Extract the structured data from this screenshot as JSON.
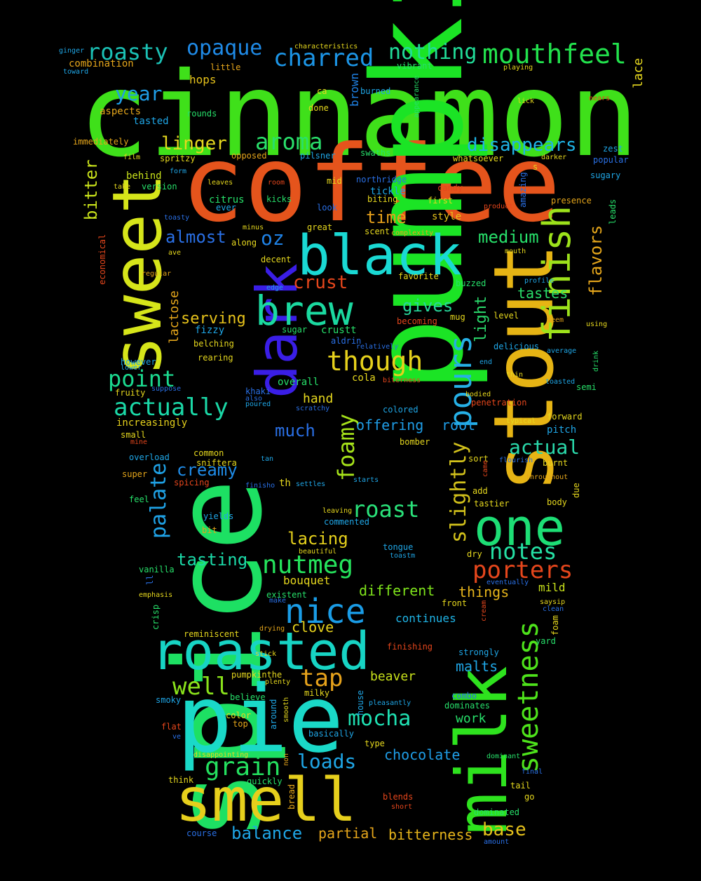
{
  "words": [
    {
      "text": "cinnamon",
      "color": "#3fe01a"
    },
    {
      "text": "coffee",
      "color": "#e5541c"
    },
    {
      "text": "pumpkin",
      "color": "#1be425"
    },
    {
      "text": "spice",
      "color": "#1de063"
    },
    {
      "text": "stout",
      "color": "#e6b414"
    },
    {
      "text": "sweet",
      "color": "#d6e51a"
    },
    {
      "text": "dark",
      "color": "#3a1ee6"
    },
    {
      "text": "pie",
      "color": "#1ad9c8"
    },
    {
      "text": "milk",
      "color": "#2ee21e"
    },
    {
      "text": "smell",
      "color": "#e6cf1c"
    },
    {
      "text": "black",
      "color": "#1ad9d4"
    },
    {
      "text": "roasted",
      "color": "#17d4c4"
    },
    {
      "text": "brew",
      "color": "#1bd9a0"
    },
    {
      "text": "finish",
      "color": "#9de21b"
    },
    {
      "text": "one",
      "color": "#1dde75"
    },
    {
      "text": "pours",
      "color": "#26b0e6"
    },
    {
      "text": "sweetness",
      "color": "#4ee31b"
    },
    {
      "text": "foamy",
      "color": "#a6e31a"
    },
    {
      "text": "slightly",
      "color": "#d2c11b"
    },
    {
      "text": "mouthfeel",
      "color": "#22e24d"
    },
    {
      "text": "charred",
      "color": "#1c95e6"
    },
    {
      "text": "roasty",
      "color": "#1bc1b5"
    },
    {
      "text": "opaque",
      "color": "#1f8ae6"
    },
    {
      "text": "nothing",
      "color": "#21dc98"
    },
    {
      "text": "though",
      "color": "#e6d11c"
    },
    {
      "text": "nutmeg",
      "color": "#25e35c"
    },
    {
      "text": "nice",
      "color": "#1a9ce6"
    },
    {
      "text": "actually",
      "color": "#1bd9a8"
    },
    {
      "text": "palate",
      "color": "#1fa2e6"
    },
    {
      "text": "aroma",
      "color": "#2adf6b"
    },
    {
      "text": "point",
      "color": "#1bd98f"
    },
    {
      "text": "year",
      "color": "#1f9de6"
    },
    {
      "text": "disappears",
      "color": "#1fb4e6"
    },
    {
      "text": "linger",
      "color": "#e6d81e"
    },
    {
      "text": "bitter",
      "color": "#c9e21b"
    },
    {
      "text": "almost",
      "color": "#2a70e6"
    },
    {
      "text": "oz",
      "color": "#1f82e6"
    },
    {
      "text": "crust",
      "color": "#e5461c"
    },
    {
      "text": "medium",
      "color": "#27e06a"
    },
    {
      "text": "time",
      "color": "#e6a01b"
    },
    {
      "text": "gives",
      "color": "#27d99c"
    },
    {
      "text": "flavors",
      "color": "#e5a61b"
    },
    {
      "text": "grain",
      "color": "#24e05f"
    },
    {
      "text": "mocha",
      "color": "#1fe0b2"
    },
    {
      "text": "tap",
      "color": "#e6a21b"
    },
    {
      "text": "well",
      "color": "#8ae21b"
    },
    {
      "text": "notes",
      "color": "#25e0a4"
    },
    {
      "text": "porters",
      "color": "#e5461c"
    },
    {
      "text": "roast",
      "color": "#2ae27a"
    },
    {
      "text": "creamy",
      "color": "#1f8be6"
    },
    {
      "text": "actual",
      "color": "#2ad9ab"
    },
    {
      "text": "tasting",
      "color": "#1bd9a8"
    },
    {
      "text": "lacing",
      "color": "#e6d11c"
    },
    {
      "text": "loads",
      "color": "#1fa6e6"
    },
    {
      "text": "balance",
      "color": "#1fa6e6"
    },
    {
      "text": "partial",
      "color": "#e6a61b"
    },
    {
      "text": "bitterness",
      "color": "#e6b41b"
    },
    {
      "text": "base",
      "color": "#e6c21b"
    },
    {
      "text": "chocolate",
      "color": "#1f9de6"
    },
    {
      "text": "much",
      "color": "#2a70e6"
    },
    {
      "text": "light",
      "color": "#2ad96b"
    },
    {
      "text": "lactose",
      "color": "#e5a61b"
    },
    {
      "text": "serving",
      "color": "#e6c21b"
    },
    {
      "text": "tastes",
      "color": "#2adf6b"
    },
    {
      "text": "different",
      "color": "#7ee21b"
    },
    {
      "text": "things",
      "color": "#e6b41b"
    },
    {
      "text": "clove",
      "color": "#e6d11c"
    },
    {
      "text": "hand",
      "color": "#e6d81e"
    },
    {
      "text": "offering",
      "color": "#1f9de6"
    },
    {
      "text": "root",
      "color": "#1f9de6"
    },
    {
      "text": "malts",
      "color": "#1fa6e6"
    },
    {
      "text": "beaver",
      "color": "#c9e21b"
    },
    {
      "text": "work",
      "color": "#27e06a"
    },
    {
      "text": "increasingly",
      "color": "#e6d11c"
    },
    {
      "text": "mild",
      "color": "#c9e21b"
    },
    {
      "text": "continues",
      "color": "#1fb4e6"
    },
    {
      "text": "bouquet",
      "color": "#e6d81e"
    },
    {
      "text": "combination",
      "color": "#e5a61b"
    },
    {
      "text": "hops",
      "color": "#e6c21b"
    },
    {
      "text": "lace",
      "color": "#e6d81e"
    },
    {
      "text": "brown",
      "color": "#1f82e6"
    },
    {
      "text": "aspects",
      "color": "#e5a61b"
    },
    {
      "text": "tasted",
      "color": "#1fa6e6"
    },
    {
      "text": "immediately",
      "color": "#e5a61b"
    },
    {
      "text": "behind",
      "color": "#c9e21b"
    },
    {
      "text": "version",
      "color": "#27e06a"
    },
    {
      "text": "citrus",
      "color": "#27e06a"
    },
    {
      "text": "tickle",
      "color": "#1fa6e6"
    },
    {
      "text": "candy",
      "color": "#e5461c"
    },
    {
      "text": "style",
      "color": "#e6c21b"
    },
    {
      "text": "presence",
      "color": "#e5a61b"
    },
    {
      "text": "biting",
      "color": "#e6d81e"
    },
    {
      "text": "first",
      "color": "#e6d81e"
    },
    {
      "text": "kicks",
      "color": "#27e06a"
    },
    {
      "text": "leads",
      "color": "#27e06a"
    },
    {
      "text": "great",
      "color": "#e6d81e"
    },
    {
      "text": "scent",
      "color": "#e6d81e"
    },
    {
      "text": "decent",
      "color": "#e6d81e"
    },
    {
      "text": "favorite",
      "color": "#e6d81e"
    },
    {
      "text": "buzzed",
      "color": "#27e06a"
    },
    {
      "text": "mug",
      "color": "#e6d81e"
    },
    {
      "text": "level",
      "color": "#e6d81e"
    },
    {
      "text": "fizzy",
      "color": "#1fa6e6"
    },
    {
      "text": "belching",
      "color": "#e6d81e"
    },
    {
      "text": "rearing",
      "color": "#e6d81e"
    },
    {
      "text": "sugar",
      "color": "#27e06a"
    },
    {
      "text": "crustt",
      "color": "#27e06a"
    },
    {
      "text": "aldrin",
      "color": "#2a70e6"
    },
    {
      "text": "delicious",
      "color": "#1fa6e6"
    },
    {
      "text": "thin",
      "color": "#e6d81e"
    },
    {
      "text": "semi",
      "color": "#27e06a"
    },
    {
      "text": "however",
      "color": "#1fa6e6"
    },
    {
      "text": "fruity",
      "color": "#e6d81e"
    },
    {
      "text": "cola",
      "color": "#e6d81e"
    },
    {
      "text": "colored",
      "color": "#1fa6e6"
    },
    {
      "text": "overall",
      "color": "#27e06a"
    },
    {
      "text": "khaki",
      "color": "#2a70e6"
    },
    {
      "text": "forward",
      "color": "#e6d81e"
    },
    {
      "text": "pitch",
      "color": "#1fa6e6"
    },
    {
      "text": "penetration",
      "color": "#e5461c"
    },
    {
      "text": "small",
      "color": "#e6d81e"
    },
    {
      "text": "bomber",
      "color": "#e6d81e"
    },
    {
      "text": "common",
      "color": "#e6d81e"
    },
    {
      "text": "sniftera",
      "color": "#e6d81e"
    },
    {
      "text": "overload",
      "color": "#1fa6e6"
    },
    {
      "text": "super",
      "color": "#e5a61b"
    },
    {
      "text": "spicing",
      "color": "#e5461c"
    },
    {
      "text": "sort",
      "color": "#e6d81e"
    },
    {
      "text": "burnt",
      "color": "#e6d81e"
    },
    {
      "text": "th",
      "color": "#e6d81e"
    },
    {
      "text": "settles",
      "color": "#1fa6e6"
    },
    {
      "text": "starts",
      "color": "#1fa6e6"
    },
    {
      "text": "add",
      "color": "#e6d81e"
    },
    {
      "text": "tastier",
      "color": "#e6d81e"
    },
    {
      "text": "body",
      "color": "#e6d81e"
    },
    {
      "text": "feel",
      "color": "#27e06a"
    },
    {
      "text": "yields",
      "color": "#1fa6e6"
    },
    {
      "text": "bit",
      "color": "#e5a61b"
    },
    {
      "text": "commented",
      "color": "#1fa6e6"
    },
    {
      "text": "tongue",
      "color": "#1fa6e6"
    },
    {
      "text": "dry",
      "color": "#e6d81e"
    },
    {
      "text": "vanilla",
      "color": "#27e06a"
    },
    {
      "text": "existent",
      "color": "#27e06a"
    },
    {
      "text": "front",
      "color": "#e6d81e"
    },
    {
      "text": "crisp",
      "color": "#27e06a"
    },
    {
      "text": "foam",
      "color": "#e6d81e"
    },
    {
      "text": "reminiscent",
      "color": "#e6d81e"
    },
    {
      "text": "finishing",
      "color": "#e5461c"
    },
    {
      "text": "yard",
      "color": "#27e06a"
    },
    {
      "text": "strongly",
      "color": "#1fa6e6"
    },
    {
      "text": "pumpkinthe",
      "color": "#e6d81e"
    },
    {
      "text": "smoky",
      "color": "#1fa6e6"
    },
    {
      "text": "believe",
      "color": "#27e06a"
    },
    {
      "text": "milky",
      "color": "#e6d81e"
    },
    {
      "text": "combo",
      "color": "#2a70e6"
    },
    {
      "text": "dominates",
      "color": "#27e06a"
    },
    {
      "text": "flat",
      "color": "#e5461c"
    },
    {
      "text": "color",
      "color": "#e6d81e"
    },
    {
      "text": "top",
      "color": "#e5a61b"
    },
    {
      "text": "basically",
      "color": "#1fa6e6"
    },
    {
      "text": "type",
      "color": "#e6d81e"
    },
    {
      "text": "think",
      "color": "#e6d81e"
    },
    {
      "text": "quickly",
      "color": "#27e06a"
    },
    {
      "text": "final",
      "color": "#2a70e6"
    },
    {
      "text": "tail",
      "color": "#e6d81e"
    },
    {
      "text": "go",
      "color": "#e6d81e"
    },
    {
      "text": "blends",
      "color": "#e5461c"
    },
    {
      "text": "dominated",
      "color": "#27e06a"
    },
    {
      "text": "course",
      "color": "#2a70e6"
    },
    {
      "text": "around",
      "color": "#1fa6e6"
    },
    {
      "text": "house",
      "color": "#1fa6e6"
    },
    {
      "text": "bread",
      "color": "#e5a61b"
    },
    {
      "text": "ginger",
      "color": "#1fa6e6"
    },
    {
      "text": "toward",
      "color": "#1fa6e6"
    },
    {
      "text": "little",
      "color": "#e5a61b"
    },
    {
      "text": "characteristics",
      "color": "#e6d81e"
    },
    {
      "text": "vibrant",
      "color": "#27e06a"
    },
    {
      "text": "playing",
      "color": "#e6d81e"
    },
    {
      "text": "rounds",
      "color": "#27e06a"
    },
    {
      "text": "ca",
      "color": "#e6d81e"
    },
    {
      "text": "burned",
      "color": "#1fa6e6"
    },
    {
      "text": "appearance",
      "color": "#27e06a"
    },
    {
      "text": "lick",
      "color": "#e6d81e"
    },
    {
      "text": "nears",
      "color": "#e5461c"
    },
    {
      "text": "done",
      "color": "#e6d81e"
    },
    {
      "text": "film",
      "color": "#e6d81e"
    },
    {
      "text": "spritzy",
      "color": "#e6d81e"
    },
    {
      "text": "opposed",
      "color": "#e5a61b"
    },
    {
      "text": "pilsner",
      "color": "#1fa6e6"
    },
    {
      "text": "swaths",
      "color": "#27e06a"
    },
    {
      "text": "whatsoever",
      "color": "#e6d81e"
    },
    {
      "text": "zest",
      "color": "#1fa6e6"
    },
    {
      "text": "darker",
      "color": "#e6d81e"
    },
    {
      "text": "popular",
      "color": "#2a70e6"
    },
    {
      "text": "sugary",
      "color": "#1fa6e6"
    },
    {
      "text": "form",
      "color": "#1fa6e6"
    },
    {
      "text": "take",
      "color": "#e6d81e"
    },
    {
      "text": "leaves",
      "color": "#e6d81e"
    },
    {
      "text": "room",
      "color": "#e5461c"
    },
    {
      "text": "mid",
      "color": "#e6d81e"
    },
    {
      "text": "northridge",
      "color": "#2a70e6"
    },
    {
      "text": "amazing",
      "color": "#2a70e6"
    },
    {
      "text": "s",
      "color": "#e6d81e"
    },
    {
      "text": "ever",
      "color": "#1fa6e6"
    },
    {
      "text": "look",
      "color": "#2a70e6"
    },
    {
      "text": "product",
      "color": "#e5461c"
    },
    {
      "text": "toasty",
      "color": "#2a70e6"
    },
    {
      "text": "minus",
      "color": "#e6d81e"
    },
    {
      "text": "along",
      "color": "#e6d81e"
    },
    {
      "text": "complexity",
      "color": "#e5a61b"
    },
    {
      "text": "economical",
      "color": "#e5461c"
    },
    {
      "text": "ave",
      "color": "#e6d81e"
    },
    {
      "text": "mouth",
      "color": "#e6d81e"
    },
    {
      "text": "regular",
      "color": "#e5a61b"
    },
    {
      "text": "profile",
      "color": "#1fa6e6"
    },
    {
      "text": "edge",
      "color": "#1fa6e6"
    },
    {
      "text": "seem",
      "color": "#e5a61b"
    },
    {
      "text": "using",
      "color": "#e6d81e"
    },
    {
      "text": "becoming",
      "color": "#e5461c"
    },
    {
      "text": "relatively",
      "color": "#2a70e6"
    },
    {
      "text": "average",
      "color": "#1fa6e6"
    },
    {
      "text": "lower",
      "color": "#1fa6e6"
    },
    {
      "text": "end",
      "color": "#1fa6e6"
    },
    {
      "text": "drink",
      "color": "#27e06a"
    },
    {
      "text": "suppose",
      "color": "#2a70e6"
    },
    {
      "text": "also",
      "color": "#2a70e6"
    },
    {
      "text": "poured",
      "color": "#1fa6e6"
    },
    {
      "text": "biterness",
      "color": "#e5461c"
    },
    {
      "text": "bodied",
      "color": "#e6d81e"
    },
    {
      "text": "toasted",
      "color": "#1fa6e6"
    },
    {
      "text": "scratchy",
      "color": "#2a70e6"
    },
    {
      "text": "mine",
      "color": "#e5461c"
    },
    {
      "text": "typical",
      "color": "#e6d81e"
    },
    {
      "text": "tan",
      "color": "#1fa6e6"
    },
    {
      "text": "flourish",
      "color": "#2a70e6"
    },
    {
      "text": "came",
      "color": "#e5461c"
    },
    {
      "text": "throughout",
      "color": "#e5a61b"
    },
    {
      "text": "finisho",
      "color": "#2a70e6"
    },
    {
      "text": "due",
      "color": "#e6d81e"
    },
    {
      "text": "leaving",
      "color": "#e6d81e"
    },
    {
      "text": "beautiful",
      "color": "#e6d81e"
    },
    {
      "text": "toastm",
      "color": "#1fa6e6"
    },
    {
      "text": "ll",
      "color": "#2a70e6"
    },
    {
      "text": "eventually",
      "color": "#2a70e6"
    },
    {
      "text": "emphasis",
      "color": "#e6d81e"
    },
    {
      "text": "make",
      "color": "#2a70e6"
    },
    {
      "text": "cream",
      "color": "#e5461c"
    },
    {
      "text": "saysip",
      "color": "#e6d81e"
    },
    {
      "text": "clean",
      "color": "#2a70e6"
    },
    {
      "text": "drying",
      "color": "#e5a61b"
    },
    {
      "text": "stick",
      "color": "#e6d81e"
    },
    {
      "text": "plenty",
      "color": "#e6d81e"
    },
    {
      "text": "smooth",
      "color": "#e6d81e"
    },
    {
      "text": "pleasantly",
      "color": "#1fa6e6"
    },
    {
      "text": "ve",
      "color": "#2a70e6"
    },
    {
      "text": "disappointing",
      "color": "#e6d81e"
    },
    {
      "text": "non",
      "color": "#e5a61b"
    },
    {
      "text": "dominant",
      "color": "#27e06a"
    },
    {
      "text": "short",
      "color": "#e5461c"
    },
    {
      "text": "amount",
      "color": "#2a70e6"
    }
  ]
}
